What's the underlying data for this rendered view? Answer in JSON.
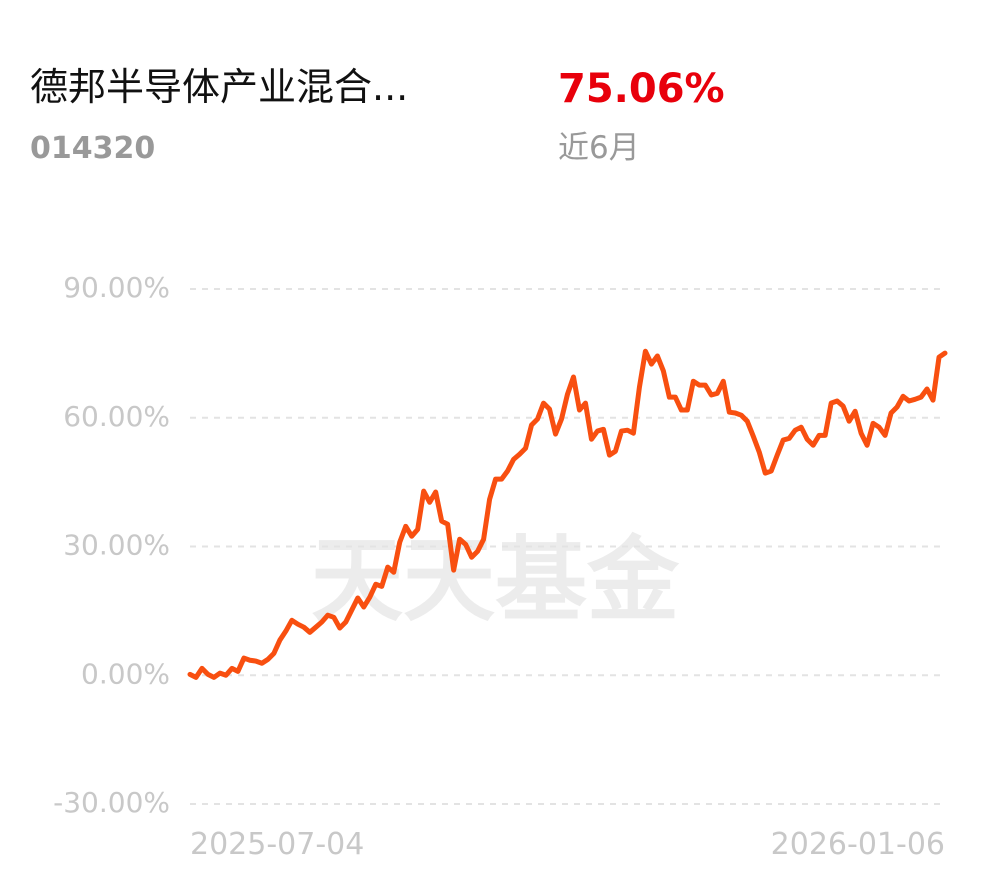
{
  "header": {
    "title": "德邦半导体产业混合...",
    "code": "014320",
    "return": "75.06%",
    "period": "近6月"
  },
  "chart_data": {
    "type": "line",
    "watermark": "天天基金",
    "categories": [
      "2025-07-04",
      null,
      null,
      null,
      null,
      null,
      null,
      null,
      null,
      null,
      null,
      null,
      null,
      null,
      null,
      null,
      null,
      null,
      null,
      null,
      null,
      null,
      null,
      null,
      null,
      null,
      null,
      null,
      null,
      null,
      null,
      null,
      null,
      null,
      null,
      null,
      null,
      null,
      null,
      null,
      null,
      null,
      null,
      null,
      null,
      null,
      null,
      null,
      null,
      null,
      null,
      null,
      null,
      null,
      null,
      null,
      null,
      null,
      null,
      null,
      null,
      null,
      null,
      null,
      null,
      null,
      null,
      null,
      null,
      null,
      null,
      null,
      null,
      null,
      null,
      null,
      null,
      null,
      null,
      null,
      null,
      null,
      null,
      null,
      null,
      null,
      null,
      null,
      null,
      null,
      null,
      null,
      null,
      null,
      null,
      null,
      null,
      null,
      null,
      null,
      null,
      null,
      null,
      null,
      null,
      null,
      null,
      null,
      null,
      null,
      null,
      null,
      null,
      null,
      null,
      null,
      null,
      null,
      null,
      null,
      null,
      null,
      null,
      null,
      null,
      null,
      "2026-01-06"
    ],
    "series": [
      {
        "color": "#f84f10",
        "values": [
          0.2,
          -0.5,
          1.6,
          0.2,
          -0.5,
          0.5,
          0,
          1.6,
          0.9,
          4,
          3.5,
          3.3,
          2.8,
          3.7,
          5.1,
          8.2,
          10.3,
          12.8,
          11.9,
          11.2,
          10,
          11.2,
          12.4,
          14,
          13.5,
          11,
          12.4,
          15.2,
          18,
          15.9,
          18.2,
          21.2,
          20.7,
          25.2,
          24,
          31,
          34.7,
          32.4,
          34,
          42.9,
          40.3,
          42.7,
          35.9,
          35.2,
          24.5,
          31.7,
          30.5,
          27.5,
          28.9,
          31.7,
          41,
          45.7,
          45.7,
          47.6,
          50.3,
          51.5,
          52.9,
          58.3,
          59.7,
          63.4,
          62,
          56.2,
          59.7,
          65.5,
          69.5,
          61.8,
          63.4,
          55,
          56.9,
          57.3,
          51.3,
          52.2,
          56.9,
          57.1,
          56.4,
          67.1,
          75.5,
          72.5,
          74.4,
          70.9,
          64.8,
          64.8,
          61.8,
          61.8,
          68.5,
          67.6,
          67.6,
          65.3,
          65.7,
          68.5,
          61.3,
          61.1,
          60.6,
          59.2,
          55.7,
          52,
          47.1,
          47.6,
          51.3,
          54.8,
          55.2,
          57.1,
          57.8,
          55,
          53.6,
          55.9,
          55.9,
          63.4,
          63.9,
          62.7,
          59.2,
          61.5,
          56.4,
          53.6,
          58.7,
          57.8,
          55.9,
          61.1,
          62.5,
          65,
          63.9,
          64.3,
          64.8,
          66.7,
          64.1,
          74.1,
          75.06
        ]
      }
    ],
    "ylim": [
      -30,
      90
    ],
    "yticks": [
      {
        "value": 90,
        "label": "90.00%"
      },
      {
        "value": 60,
        "label": "60.00%"
      },
      {
        "value": 30,
        "label": "30.00%"
      },
      {
        "value": 0,
        "label": "0.00%"
      },
      {
        "value": -30,
        "label": "-30.00%"
      }
    ],
    "grid": true
  }
}
